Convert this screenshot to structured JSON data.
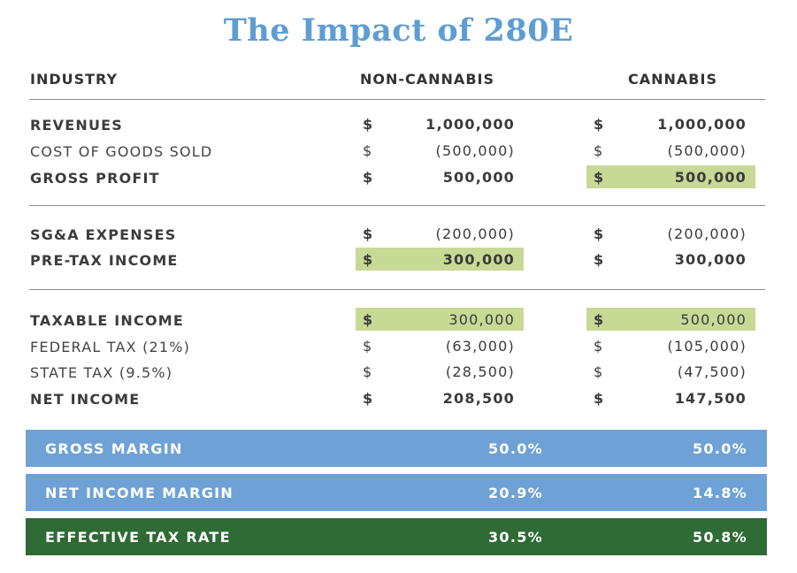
{
  "title": "The Impact of 280E",
  "headers": {
    "industry": "INDUSTRY",
    "non_cannabis": "NON-CANNABIS",
    "cannabis": "CANNABIS"
  },
  "currency_symbol": "$",
  "rows": [
    {
      "label": "REVENUES",
      "non_cannabis": "1,000,000",
      "cannabis": "1,000,000"
    },
    {
      "label": "COST OF GOODS SOLD",
      "non_cannabis": "(500,000)",
      "cannabis": "(500,000)"
    },
    {
      "label": "GROSS PROFIT",
      "non_cannabis": "500,000",
      "cannabis": "500,000"
    },
    {
      "label": "SG&A EXPENSES",
      "non_cannabis": "(200,000)",
      "cannabis": "(200,000)"
    },
    {
      "label": "PRE-TAX INCOME",
      "non_cannabis": "300,000",
      "cannabis": "300,000"
    },
    {
      "label": "TAXABLE INCOME",
      "non_cannabis": "300,000",
      "cannabis": "500,000"
    },
    {
      "label": "FEDERAL TAX (21%)",
      "non_cannabis": "(63,000)",
      "cannabis": "(105,000)"
    },
    {
      "label": "STATE TAX (9.5%)",
      "non_cannabis": "(28,500)",
      "cannabis": "(47,500)"
    },
    {
      "label": "NET INCOME",
      "non_cannabis": "208,500",
      "cannabis": "147,500"
    }
  ],
  "summary": [
    {
      "label": "GROSS MARGIN",
      "non_cannabis": "50.0%",
      "cannabis": "50.0%"
    },
    {
      "label": "NET INCOME MARGIN",
      "non_cannabis": "20.9%",
      "cannabis": "14.8%"
    },
    {
      "label": "EFFECTIVE TAX RATE",
      "non_cannabis": "30.5%",
      "cannabis": "50.8%"
    }
  ],
  "colors": {
    "title": "#5e9dd3",
    "highlight": "#c8d996",
    "band_blue": "#6ea2d6",
    "band_green": "#2e6b35"
  }
}
